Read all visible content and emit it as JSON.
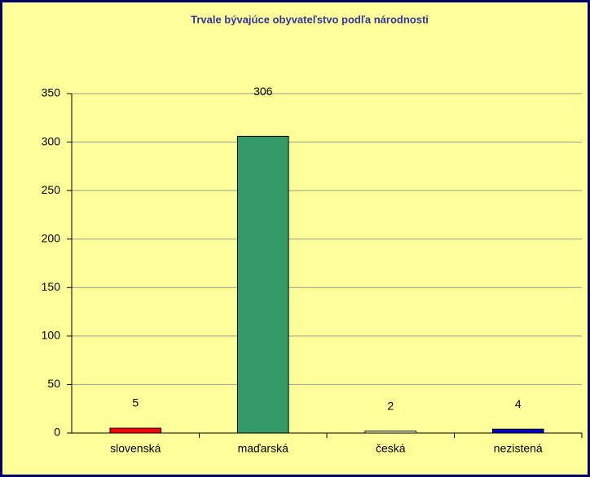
{
  "chart_data": {
    "type": "bar",
    "title": "Trvale bývajúce obyvateľstvo podľa národnosti",
    "categories": [
      "slovenská",
      "maďarská",
      "česká",
      "nezistená"
    ],
    "values": [
      5,
      306,
      2,
      4
    ],
    "colors": [
      "#ff0000",
      "#339966",
      "#ffffcc",
      "#0000cc"
    ],
    "ylim": [
      0,
      350
    ],
    "yticks": [
      0,
      50,
      100,
      150,
      200,
      250,
      300,
      350
    ],
    "grid": true
  }
}
